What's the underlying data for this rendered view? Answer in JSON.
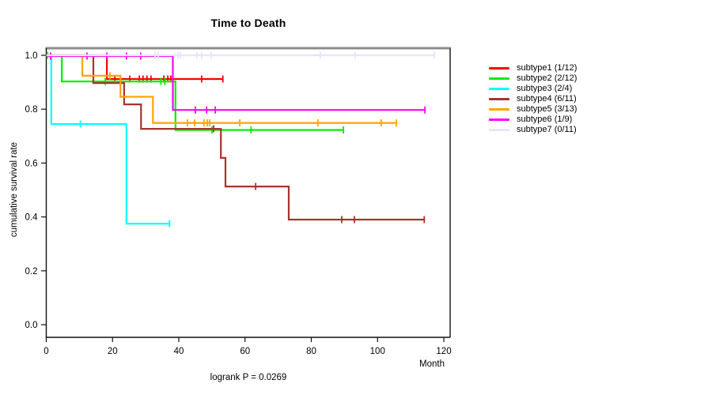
{
  "chart_data": {
    "type": "line",
    "variant": "kaplan-meier-step-survival",
    "title": "Time to Death",
    "xlabel": "Month",
    "ylabel": "cumulative survival rate",
    "footnote": "logrank P = 0.0269",
    "x_ticks": [
      0,
      20,
      40,
      60,
      80,
      100,
      120
    ],
    "y_ticks": [
      0.0,
      0.2,
      0.4,
      0.6,
      0.8,
      1.0
    ],
    "xlim": [
      0,
      122
    ],
    "ylim": [
      -0.04,
      1.03
    ],
    "grid": false,
    "legend_position": "right-outside",
    "axis_colors": {
      "top_border": "#8c8c8c",
      "right_border": "#595959",
      "left_border": "#111111",
      "bottom_border": "#111111",
      "tick": "#111111"
    },
    "series": [
      {
        "name": "subtype1 (1/12)",
        "color": "#ff0000",
        "steps": [
          [
            0,
            1
          ],
          [
            18.3,
            1
          ],
          [
            18.3,
            0.912
          ],
          [
            53.5,
            0.912
          ]
        ],
        "censors": [
          [
            20.7,
            0.912
          ],
          [
            25.2,
            0.912
          ],
          [
            28.1,
            0.912
          ],
          [
            29.2,
            0.912
          ],
          [
            30.4,
            0.912
          ],
          [
            31.6,
            0.912
          ],
          [
            35.5,
            0.912
          ],
          [
            36.7,
            0.912
          ],
          [
            37.6,
            0.912
          ],
          [
            46.9,
            0.912
          ],
          [
            53.3,
            0.912
          ]
        ]
      },
      {
        "name": "subtype2 (2/12)",
        "color": "#00ee00",
        "steps": [
          [
            0,
            1
          ],
          [
            4.7,
            1
          ],
          [
            4.7,
            0.903
          ],
          [
            39,
            0.903
          ],
          [
            39,
            0.723
          ],
          [
            89.9,
            0.723
          ]
        ],
        "censors": [
          [
            0.3,
            1
          ],
          [
            17.8,
            0.903
          ],
          [
            34.6,
            0.903
          ],
          [
            35.8,
            0.903
          ],
          [
            50,
            0.723
          ],
          [
            61.8,
            0.723
          ],
          [
            89.7,
            0.723
          ]
        ]
      },
      {
        "name": "subtype3 (2/4)",
        "color": "#00ffff",
        "steps": [
          [
            0,
            1
          ],
          [
            1.5,
            1
          ],
          [
            1.5,
            0.745
          ],
          [
            24.2,
            0.745
          ],
          [
            24.2,
            0.375
          ],
          [
            37.4,
            0.375
          ]
        ],
        "censors": [
          [
            10.3,
            0.745
          ],
          [
            37.2,
            0.375
          ]
        ]
      },
      {
        "name": "subtype4 (6/11)",
        "color": "#a5342d",
        "steps": [
          [
            0,
            1
          ],
          [
            14.2,
            1
          ],
          [
            14.2,
            0.897
          ],
          [
            23.5,
            0.897
          ],
          [
            23.5,
            0.818
          ],
          [
            28.6,
            0.818
          ],
          [
            28.6,
            0.727
          ],
          [
            52.7,
            0.727
          ],
          [
            52.7,
            0.619
          ],
          [
            54.1,
            0.619
          ],
          [
            54.1,
            0.513
          ],
          [
            73.2,
            0.513
          ],
          [
            73.2,
            0.39
          ],
          [
            114.3,
            0.39
          ]
        ],
        "censors": [
          [
            50.5,
            0.727
          ],
          [
            63.2,
            0.513
          ],
          [
            89.2,
            0.39
          ],
          [
            93,
            0.39
          ],
          [
            114.1,
            0.39
          ]
        ]
      },
      {
        "name": "subtype5 (3/13)",
        "color": "#ffa500",
        "steps": [
          [
            0,
            1
          ],
          [
            10.9,
            1
          ],
          [
            10.9,
            0.924
          ],
          [
            22.4,
            0.924
          ],
          [
            22.4,
            0.846
          ],
          [
            32.2,
            0.846
          ],
          [
            32.2,
            0.749
          ],
          [
            105.9,
            0.749
          ]
        ],
        "censors": [
          [
            19.2,
            0.924
          ],
          [
            42.6,
            0.749
          ],
          [
            44.8,
            0.749
          ],
          [
            47.6,
            0.749
          ],
          [
            48.6,
            0.749
          ],
          [
            49.3,
            0.749
          ],
          [
            58.4,
            0.749
          ],
          [
            82,
            0.749
          ],
          [
            101.1,
            0.749
          ],
          [
            105.7,
            0.749
          ]
        ]
      },
      {
        "name": "subtype6 (1/9)",
        "color": "#ff00ff",
        "steps": [
          [
            0,
            0.997
          ],
          [
            38.2,
            0.997
          ],
          [
            38.2,
            0.797
          ],
          [
            114.5,
            0.797
          ]
        ],
        "censors": [
          [
            1.3,
            0.997
          ],
          [
            12.3,
            0.997
          ],
          [
            18.3,
            0.997
          ],
          [
            24.2,
            0.997
          ],
          [
            28.5,
            0.997
          ],
          [
            45,
            0.797
          ],
          [
            48.4,
            0.797
          ],
          [
            51,
            0.797
          ],
          [
            114.3,
            0.797
          ]
        ]
      },
      {
        "name": "subtype7 (0/11)",
        "color": "#e6e6fa",
        "steps": [
          [
            0,
            1
          ],
          [
            117.4,
            1
          ]
        ],
        "censors": [
          [
            32.8,
            1
          ],
          [
            33.8,
            1
          ],
          [
            39.8,
            1
          ],
          [
            40.5,
            1
          ],
          [
            45.5,
            1
          ],
          [
            46.9,
            1
          ],
          [
            49.8,
            1
          ],
          [
            82.7,
            1
          ],
          [
            93.2,
            1
          ],
          [
            117.2,
            1
          ]
        ]
      }
    ]
  }
}
